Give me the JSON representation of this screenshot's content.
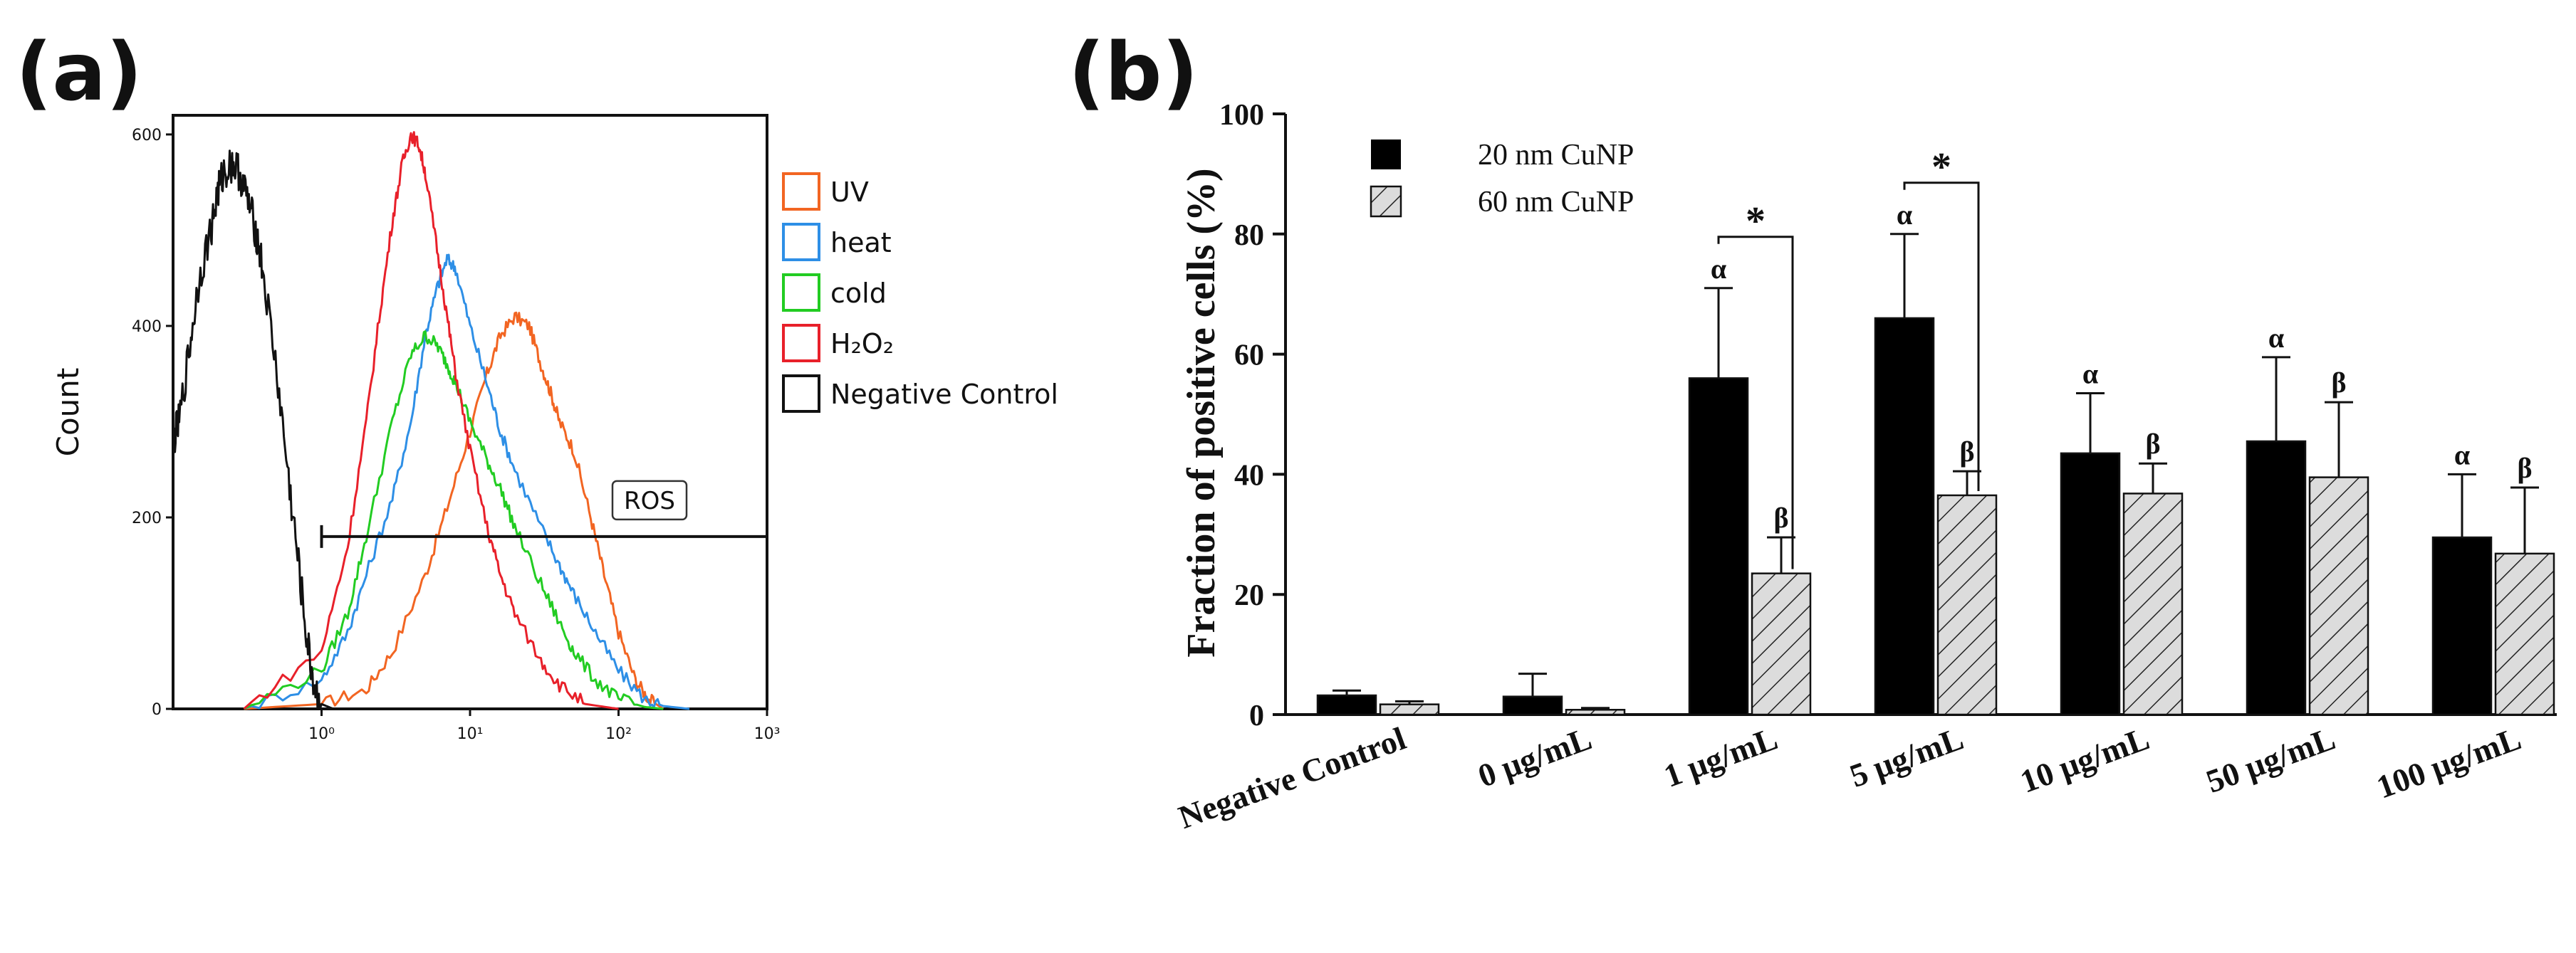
{
  "panel_a": {
    "label": "(a)",
    "chart_data": {
      "type": "line",
      "title": "",
      "xlabel": "",
      "ylabel": "Count",
      "xscale": "log",
      "xlim": [
        0.1,
        1000
      ],
      "ylim": [
        0,
        620
      ],
      "xticks": [
        "10⁰",
        "10¹",
        "10²",
        "10³"
      ],
      "xtick_values": [
        1,
        10,
        100,
        1000
      ],
      "yticks": [
        "0",
        "200",
        "400",
        "600"
      ],
      "ytick_values": [
        0,
        200,
        400,
        600
      ],
      "gate": {
        "label": "ROS",
        "from": 1,
        "to": 1000,
        "level": 180
      },
      "series": [
        {
          "name": "UV",
          "color": "#f26522",
          "x": [
            0.3,
            1,
            2,
            3,
            5,
            7,
            10,
            13,
            16,
            20,
            25,
            30,
            35,
            40,
            50,
            65,
            80,
            100,
            130,
            160,
            200
          ],
          "y": [
            0,
            5,
            20,
            60,
            140,
            210,
            290,
            350,
            390,
            410,
            400,
            360,
            330,
            300,
            270,
            200,
            140,
            80,
            30,
            10,
            0
          ]
        },
        {
          "name": "heat",
          "color": "#2e8fe6",
          "x": [
            0.3,
            1,
            1.5,
            2,
            3,
            4,
            5,
            6,
            7,
            8,
            10,
            13,
            16,
            20,
            30,
            40,
            50,
            70,
            100,
            150,
            200,
            300
          ],
          "y": [
            0,
            30,
            80,
            140,
            220,
            300,
            390,
            440,
            470,
            460,
            400,
            340,
            290,
            250,
            190,
            150,
            120,
            80,
            40,
            10,
            3,
            0
          ]
        },
        {
          "name": "cold",
          "color": "#22cc22",
          "x": [
            0.3,
            1,
            1.5,
            2,
            3,
            4,
            5,
            6,
            7,
            8,
            10,
            13,
            16,
            20,
            30,
            40,
            50,
            70,
            100,
            150,
            200
          ],
          "y": [
            0,
            40,
            100,
            180,
            300,
            370,
            390,
            380,
            360,
            340,
            300,
            260,
            230,
            190,
            130,
            90,
            60,
            30,
            10,
            2,
            0
          ]
        },
        {
          "name": "H₂O₂",
          "color": "#e8202a",
          "x": [
            0.3,
            1,
            1.5,
            2,
            2.5,
            3,
            3.5,
            4,
            4.5,
            5,
            6,
            7,
            8,
            10,
            13,
            16,
            20,
            30,
            40,
            60,
            100
          ],
          "y": [
            0,
            60,
            170,
            300,
            420,
            510,
            570,
            600,
            590,
            560,
            480,
            410,
            350,
            270,
            190,
            140,
            100,
            50,
            25,
            5,
            0
          ]
        },
        {
          "name": "Negative Control",
          "color": "#111111",
          "x": [
            0.1,
            0.11,
            0.13,
            0.15,
            0.18,
            0.2,
            0.22,
            0.25,
            0.28,
            0.32,
            0.36,
            0.4,
            0.5,
            0.6,
            0.7,
            0.8,
            0.9,
            1.0,
            1.2
          ],
          "y": [
            280,
            300,
            380,
            450,
            500,
            540,
            560,
            570,
            560,
            530,
            500,
            460,
            350,
            240,
            150,
            70,
            20,
            5,
            0
          ]
        }
      ]
    }
  },
  "panel_b": {
    "label": "(b)",
    "chart_data": {
      "type": "bar",
      "title": "",
      "xlabel": "",
      "ylabel": "Fraction of positive cells (%)",
      "ylim": [
        0,
        100
      ],
      "yticks": [
        "0",
        "20",
        "40",
        "60",
        "80",
        "100"
      ],
      "ytick_values": [
        0,
        20,
        40,
        60,
        80,
        100
      ],
      "categories": [
        "Negative Control",
        "0 μg/mL",
        "1 μg/mL",
        "5 μg/mL",
        "10 μg/mL",
        "50 μg/mL",
        "100 μg/mL"
      ],
      "series": [
        {
          "name": "20 nm CuNP",
          "fill": "#000000",
          "values": [
            3.2,
            3.0,
            56.0,
            66.0,
            43.5,
            45.5,
            29.5
          ],
          "errors": [
            0.8,
            3.8,
            15.0,
            14.0,
            10.0,
            14.0,
            10.5
          ],
          "sig": [
            "",
            "",
            "α",
            "α",
            "α",
            "α",
            "α"
          ]
        },
        {
          "name": "60 nm CuNP",
          "fill": "hatched",
          "values": [
            1.7,
            0.8,
            23.5,
            36.5,
            36.8,
            39.5,
            26.8
          ],
          "errors": [
            0.5,
            0.3,
            6.0,
            4.0,
            5.0,
            12.5,
            11.0
          ],
          "sig": [
            "",
            "",
            "β",
            "β",
            "β",
            "β",
            "β"
          ]
        }
      ],
      "comparisons": [
        {
          "category_index": 2,
          "marker": "*"
        },
        {
          "category_index": 3,
          "marker": "*"
        }
      ]
    }
  }
}
